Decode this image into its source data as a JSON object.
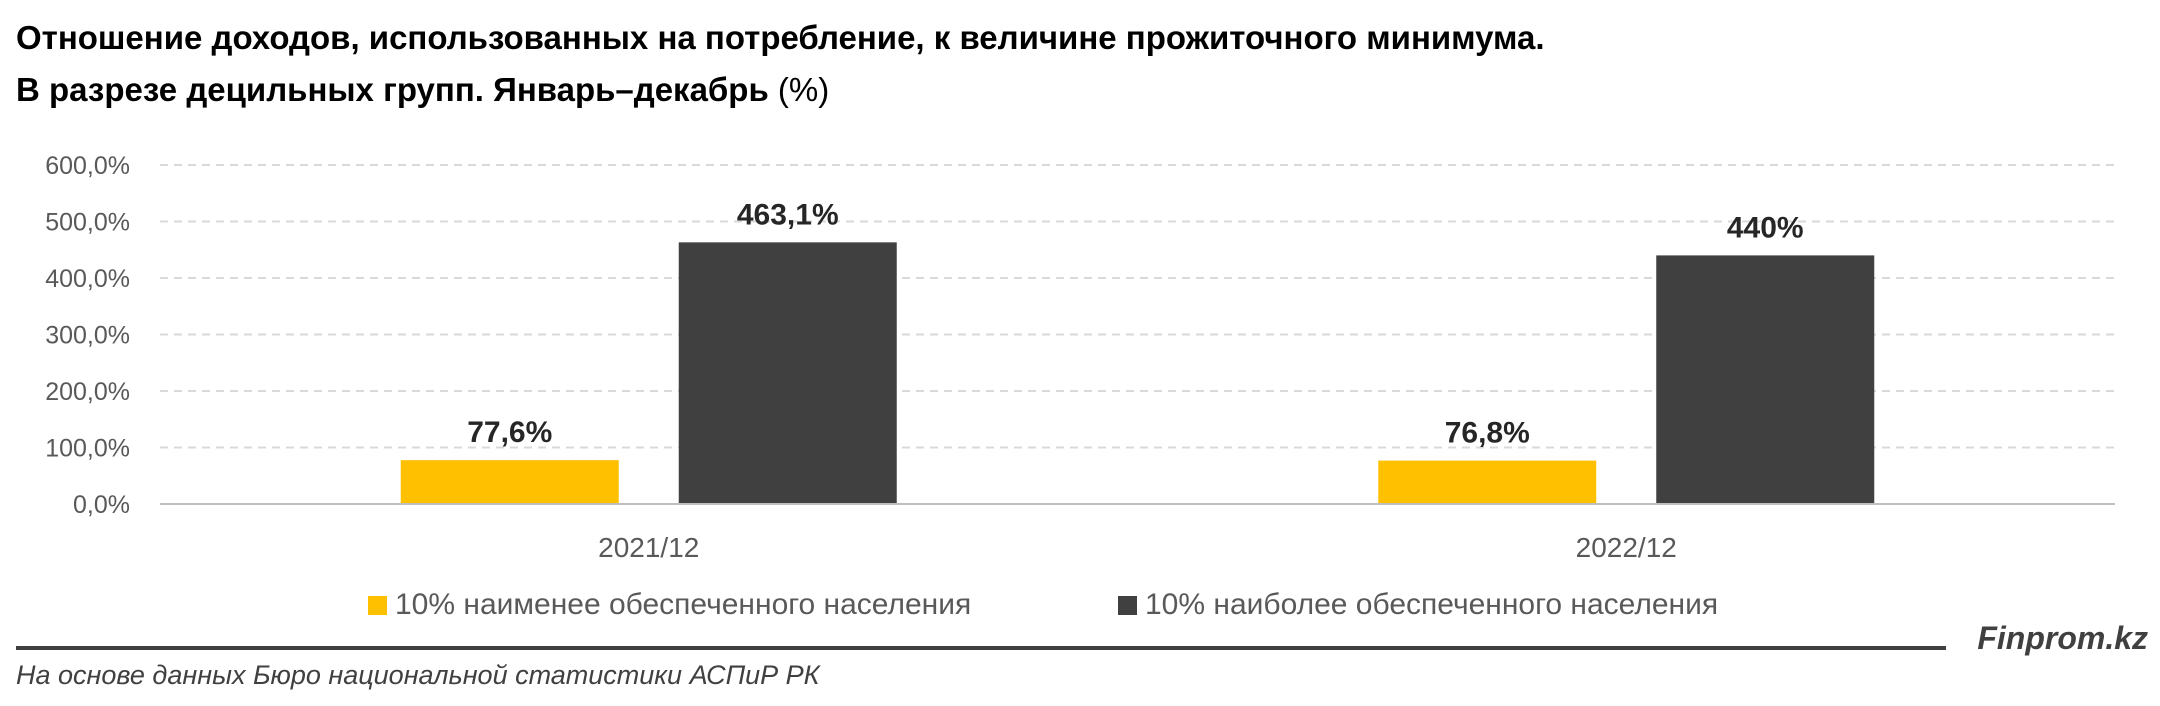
{
  "title_line1": "Отношение доходов, использованных на потребление, к величине прожиточного минимума.",
  "title_line2_bold": "В разрезе децильных групп. Январь–декабрь",
  "title_line2_unit": "(%)",
  "brand": "Finprom.kz",
  "source": "На основе данных Бюро национальной статистики АСПиР РК",
  "chart_data": {
    "type": "bar",
    "categories": [
      "2021/12",
      "2022/12"
    ],
    "series": [
      {
        "name": "10% наименее обеспеченного населения",
        "values": [
          77.6,
          76.8
        ],
        "labels": [
          "77,6%",
          "76,8%"
        ],
        "color": "#FFC000"
      },
      {
        "name": "10% наиболее обеспеченного населения",
        "values": [
          463.1,
          440
        ],
        "labels": [
          "463,1%",
          "440%"
        ],
        "color": "#404040"
      }
    ],
    "ylim": [
      0,
      600
    ],
    "yticks": [
      "0,0%",
      "100,0%",
      "200,0%",
      "300,0%",
      "400,0%",
      "500,0%",
      "600,0%"
    ],
    "grid": true,
    "legend_position": "bottom"
  }
}
